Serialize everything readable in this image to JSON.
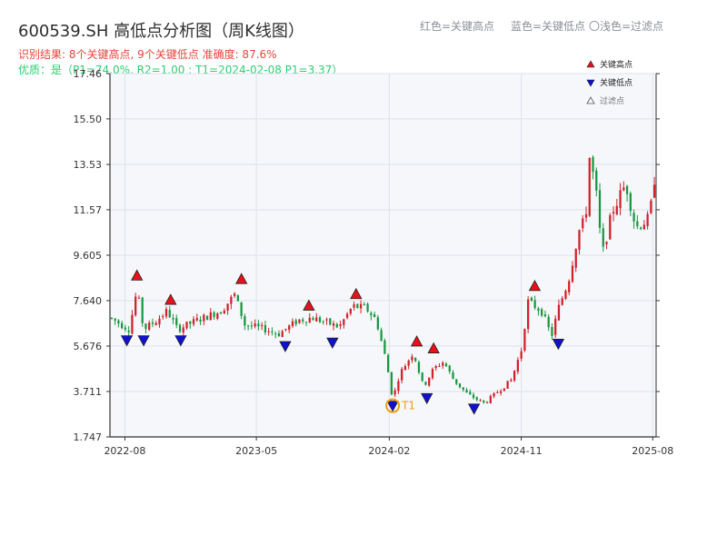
{
  "header": {
    "title": "600539.SH 高低点分析图（周K线图）",
    "summary": "识别结果: 8个关键高点, 9个关键低点  准确度: 87.6%",
    "quality": "优质：是（P1=74.0%, R2=1.00 ; T1=2024-02-08 P1=3.37）"
  },
  "top_legend": {
    "red": "红色=关键高点",
    "blue": "蓝色=关键低点",
    "gray": "〇浅色=过滤点"
  },
  "colors": {
    "up": "#d0202a",
    "down": "#1a9641",
    "high_marker": "#e8101a",
    "low_marker": "#1010d0",
    "t1": "#f39c12",
    "grid": "#dde3ea",
    "plot_bg": "#f5f7fa"
  },
  "chart_data": {
    "type": "candlestick",
    "title": "600539.SH 高低点分析图（周K线图）",
    "x_type": "date",
    "x_range": [
      "2022-07-01",
      "2025-08-08"
    ],
    "x_ticks": [
      "2022-08",
      "2023-05",
      "2024-02",
      "2024-11",
      "2025-08"
    ],
    "y_range": [
      1.747,
      17.46
    ],
    "y_ticks": [
      1.747,
      3.711,
      5.676,
      7.64,
      9.605,
      11.57,
      13.53,
      15.5,
      17.46
    ],
    "y_tick_labels": [
      "1.747",
      "3.711",
      "5.676",
      "7.640",
      "9.605",
      "11.57",
      "13.53",
      "15.50",
      "17.46"
    ],
    "grid": true,
    "legend": {
      "position": "top-right",
      "entries": [
        {
          "label": "关键高点",
          "marker": "up-triangle",
          "color": "#e8101a"
        },
        {
          "label": "关键低点",
          "marker": "down-triangle",
          "color": "#1010d0"
        },
        {
          "label": "过滤点",
          "marker": "up-triangle-outline",
          "color": "#999999"
        }
      ]
    },
    "anchors": [
      [
        "2022-07-01",
        6.9
      ],
      [
        "2022-08-10",
        6.4
      ],
      [
        "2022-08-26",
        8.1
      ],
      [
        "2022-09-09",
        6.4
      ],
      [
        "2022-10-07",
        6.8
      ],
      [
        "2022-10-28",
        7.2
      ],
      [
        "2022-11-18",
        6.4
      ],
      [
        "2022-12-30",
        6.8
      ],
      [
        "2023-02-17",
        7.2
      ],
      [
        "2023-03-17",
        7.9
      ],
      [
        "2023-04-07",
        6.6
      ],
      [
        "2023-05-19",
        6.4
      ],
      [
        "2023-06-16",
        6.2
      ],
      [
        "2023-07-28",
        6.8
      ],
      [
        "2023-08-25",
        6.9
      ],
      [
        "2023-10-20",
        6.5
      ],
      [
        "2023-11-17",
        7.4
      ],
      [
        "2023-12-15",
        7.3
      ],
      [
        "2024-01-05",
        6.8
      ],
      [
        "2024-01-26",
        5.0
      ],
      [
        "2024-02-08",
        3.37
      ],
      [
        "2024-02-23",
        4.5
      ],
      [
        "2024-03-22",
        5.4
      ],
      [
        "2024-04-12",
        3.9
      ],
      [
        "2024-05-03",
        4.7
      ],
      [
        "2024-05-24",
        5.0
      ],
      [
        "2024-06-14",
        4.2
      ],
      [
        "2024-07-12",
        3.6
      ],
      [
        "2024-08-16",
        3.2
      ],
      [
        "2024-09-13",
        3.7
      ],
      [
        "2024-10-11",
        4.2
      ],
      [
        "2024-11-01",
        5.5
      ],
      [
        "2024-11-15",
        7.6
      ],
      [
        "2024-12-13",
        7.2
      ],
      [
        "2025-01-03",
        6.1
      ],
      [
        "2025-01-17",
        7.3
      ],
      [
        "2025-02-07",
        8.5
      ],
      [
        "2025-02-28",
        10.6
      ],
      [
        "2025-03-07",
        11.0
      ],
      [
        "2025-03-14",
        10.8
      ],
      [
        "2025-03-21",
        14.0
      ],
      [
        "2025-04-04",
        12.6
      ],
      [
        "2025-04-18",
        9.6
      ],
      [
        "2025-05-09",
        11.5
      ],
      [
        "2025-06-06",
        12.7
      ],
      [
        "2025-06-27",
        10.8
      ],
      [
        "2025-07-25",
        11.2
      ],
      [
        "2025-08-08",
        13.5
      ]
    ],
    "candle_count": 160,
    "key_highs": [
      {
        "date": "2022-08-26",
        "value": 8.45
      },
      {
        "date": "2022-11-04",
        "value": 7.4
      },
      {
        "date": "2023-03-31",
        "value": 8.3
      },
      {
        "date": "2023-08-18",
        "value": 7.15
      },
      {
        "date": "2023-11-24",
        "value": 7.65
      },
      {
        "date": "2024-03-29",
        "value": 5.6
      },
      {
        "date": "2024-05-03",
        "value": 5.3
      },
      {
        "date": "2024-11-29",
        "value": 8.0
      }
    ],
    "key_lows": [
      {
        "date": "2022-08-05",
        "value": 6.2
      },
      {
        "date": "2022-09-09",
        "value": 6.2
      },
      {
        "date": "2022-11-25",
        "value": 6.2
      },
      {
        "date": "2023-06-30",
        "value": 5.95
      },
      {
        "date": "2023-10-06",
        "value": 6.1
      },
      {
        "date": "2024-02-08",
        "value": 3.37
      },
      {
        "date": "2024-04-19",
        "value": 3.7
      },
      {
        "date": "2024-07-26",
        "value": 3.25
      },
      {
        "date": "2025-01-17",
        "value": 6.05
      }
    ],
    "t1": {
      "label": "T1",
      "date": "2024-02-08",
      "value": 3.37
    }
  }
}
